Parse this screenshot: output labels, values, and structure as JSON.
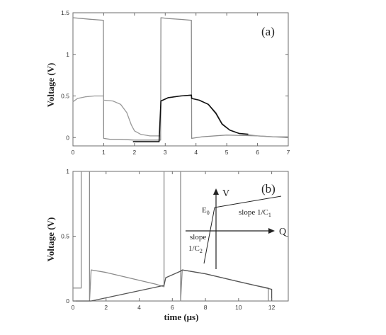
{
  "chart_data": [
    {
      "panel": "(a)",
      "type": "line",
      "ylabel": "Voltage (V)",
      "xlabel": "",
      "xlim": [
        0,
        7
      ],
      "ylim": [
        -0.1,
        1.5
      ],
      "xticks": [
        "0",
        "1",
        "2",
        "3",
        "4",
        "5",
        "6",
        "7"
      ],
      "yticks": [
        "0",
        "0.5",
        "1",
        "1.5"
      ],
      "series": [
        {
          "color": "#8c8c8c",
          "x": [
            0,
            0.3,
            0.6,
            0.99,
            1.0,
            1.2,
            1.5,
            2.0,
            2.5,
            2.85,
            2.86,
            3.1,
            3.5,
            3.85,
            3.86,
            4.2,
            5.0,
            6.0,
            7.0
          ],
          "y": [
            1.44,
            1.43,
            1.42,
            1.41,
            -0.01,
            -0.02,
            -0.02,
            -0.03,
            -0.03,
            -0.03,
            1.44,
            1.43,
            1.42,
            1.41,
            -0.01,
            0.01,
            0.03,
            0.02,
            0.0
          ]
        },
        {
          "color": "#9a9a9a",
          "x": [
            0,
            0.15,
            0.4,
            0.7,
            0.99,
            1.0,
            1.3,
            1.55,
            1.75,
            1.9,
            2.0,
            2.2,
            2.5,
            2.85,
            2.86,
            3.1,
            3.5,
            3.85,
            3.86,
            4.1,
            4.4,
            4.65,
            4.85,
            5.1,
            5.4,
            6.0,
            6.5,
            7.0
          ],
          "y": [
            0.43,
            0.47,
            0.49,
            0.5,
            0.5,
            0.45,
            0.44,
            0.4,
            0.3,
            0.15,
            0.08,
            0.04,
            0.02,
            0.02,
            0.44,
            0.48,
            0.5,
            0.51,
            0.47,
            0.45,
            0.4,
            0.3,
            0.17,
            0.09,
            0.05,
            0.02,
            0.01,
            0.01
          ]
        },
        {
          "color": "#111111",
          "x": [
            1.95,
            2.1,
            2.4,
            2.8,
            2.86,
            3.1,
            3.5,
            3.85,
            3.86,
            4.1,
            4.4,
            4.65,
            4.85,
            5.1,
            5.4,
            5.7
          ],
          "y": [
            -0.05,
            -0.05,
            -0.05,
            -0.05,
            0.44,
            0.48,
            0.5,
            0.51,
            0.47,
            0.45,
            0.4,
            0.29,
            0.16,
            0.09,
            0.05,
            0.04
          ]
        }
      ]
    },
    {
      "panel": "(b)",
      "type": "line",
      "ylabel": "Voltage (V)",
      "xlabel": "time (μs)",
      "xlim": [
        0,
        13
      ],
      "ylim": [
        0,
        1
      ],
      "xticks": [
        "0",
        "2",
        "4",
        "6",
        "8",
        "10",
        "12"
      ],
      "yticks": [
        "0",
        "0.5",
        "1"
      ],
      "series": [
        {
          "color": "#8c8c8c",
          "x": [
            0,
            0.5,
            0.5,
            1.0,
            1.0,
            1.1,
            2.0,
            3.0,
            4.0,
            5.0,
            5.5,
            5.5,
            6.5,
            6.5,
            6.6,
            8.0,
            9.0,
            10.0,
            11.0,
            11.8,
            11.8
          ],
          "y": [
            0.1,
            0.1,
            1.0,
            1.0,
            0.0,
            0.24,
            0.22,
            0.19,
            0.16,
            0.13,
            0.11,
            1.0,
            1.0,
            0.0,
            0.24,
            0.21,
            0.18,
            0.15,
            0.12,
            0.1,
            0.0
          ]
        },
        {
          "color": "#555555",
          "x": [
            0,
            1.1,
            1.1,
            5.5,
            5.6,
            6.5,
            6.6,
            8.0,
            9.0,
            10.0,
            11.0,
            12.0,
            12.0
          ],
          "y": [
            0.0,
            0.0,
            0.0,
            0.12,
            0.18,
            0.23,
            0.24,
            0.21,
            0.18,
            0.15,
            0.12,
            0.09,
            0.0
          ]
        }
      ],
      "inset": {
        "label_V": "V",
        "label_Q": "Q",
        "label_E0": "E",
        "label_E0_sub": "0",
        "slope1": "slope 1/C",
        "slope1_sub": "1",
        "slope2_line1": "slope",
        "slope2_line2": "1/C",
        "slope2_sub": "2"
      }
    }
  ]
}
